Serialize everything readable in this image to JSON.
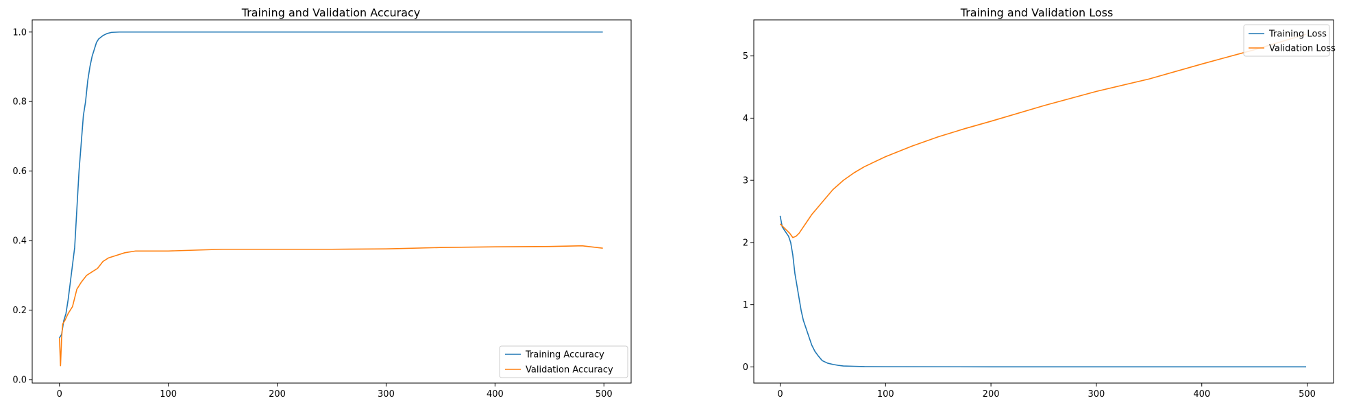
{
  "chart_data": [
    {
      "type": "line",
      "title": "Training and Validation Accuracy",
      "xlabel": "",
      "ylabel": "",
      "xlim": [
        -25,
        525
      ],
      "ylim": [
        -0.01,
        1.035
      ],
      "xticks": [
        0,
        100,
        200,
        300,
        400,
        500
      ],
      "xtick_labels": [
        "0",
        "100",
        "200",
        "300",
        "400",
        "500"
      ],
      "yticks": [
        0.0,
        0.2,
        0.4,
        0.6,
        0.8,
        1.0
      ],
      "ytick_labels": [
        "0.0",
        "0.2",
        "0.4",
        "0.6",
        "0.8",
        "1.0"
      ],
      "grid": false,
      "legend_position": "lower-right",
      "series": [
        {
          "name": "Training Accuracy",
          "color": "#1f77b4",
          "x": [
            0,
            2,
            4,
            6,
            8,
            10,
            12,
            14,
            16,
            18,
            20,
            22,
            24,
            26,
            28,
            30,
            32,
            34,
            36,
            38,
            40,
            44,
            48,
            55,
            70,
            100,
            200,
            300,
            400,
            499
          ],
          "y": [
            0.12,
            0.13,
            0.17,
            0.19,
            0.23,
            0.28,
            0.33,
            0.38,
            0.49,
            0.6,
            0.68,
            0.76,
            0.8,
            0.86,
            0.9,
            0.93,
            0.95,
            0.97,
            0.98,
            0.985,
            0.99,
            0.996,
            0.999,
            1.0,
            1.0,
            1.0,
            1.0,
            1.0,
            1.0,
            1.0
          ]
        },
        {
          "name": "Validation Accuracy",
          "color": "#ff7f0e",
          "x": [
            0,
            1,
            2,
            3,
            5,
            8,
            12,
            16,
            20,
            25,
            30,
            35,
            40,
            45,
            50,
            60,
            70,
            80,
            100,
            150,
            200,
            250,
            300,
            350,
            400,
            450,
            480,
            499
          ],
          "y": [
            0.12,
            0.04,
            0.12,
            0.16,
            0.17,
            0.19,
            0.21,
            0.26,
            0.28,
            0.3,
            0.31,
            0.32,
            0.34,
            0.35,
            0.355,
            0.365,
            0.37,
            0.37,
            0.37,
            0.375,
            0.375,
            0.375,
            0.376,
            0.38,
            0.382,
            0.383,
            0.385,
            0.378
          ]
        }
      ]
    },
    {
      "type": "line",
      "title": "Training and Validation Loss",
      "xlabel": "",
      "ylabel": "",
      "xlim": [
        -25,
        525
      ],
      "ylim": [
        -0.26,
        5.58
      ],
      "xticks": [
        0,
        100,
        200,
        300,
        400,
        500
      ],
      "xtick_labels": [
        "0",
        "100",
        "200",
        "300",
        "400",
        "500"
      ],
      "yticks": [
        0,
        1,
        2,
        3,
        4,
        5
      ],
      "ytick_labels": [
        "0",
        "1",
        "2",
        "3",
        "4",
        "5"
      ],
      "grid": false,
      "legend_position": "upper-right",
      "series": [
        {
          "name": "Training Loss",
          "color": "#1f77b4",
          "x": [
            0,
            2,
            4,
            6,
            8,
            10,
            12,
            14,
            16,
            18,
            20,
            22,
            25,
            28,
            30,
            33,
            36,
            40,
            45,
            50,
            55,
            60,
            70,
            80,
            100,
            200,
            300,
            400,
            499
          ],
          "y": [
            2.43,
            2.25,
            2.2,
            2.15,
            2.1,
            2.0,
            1.8,
            1.5,
            1.3,
            1.1,
            0.9,
            0.75,
            0.6,
            0.45,
            0.35,
            0.25,
            0.18,
            0.1,
            0.06,
            0.04,
            0.025,
            0.015,
            0.01,
            0.005,
            0.003,
            0.001,
            0.001,
            0.0005,
            0.0005
          ],
          "pick": 0
        },
        {
          "name": "Validation Loss",
          "color": "#ff7f0e",
          "x": [
            0,
            3,
            6,
            9,
            12,
            15,
            18,
            22,
            26,
            30,
            35,
            40,
            50,
            60,
            70,
            80,
            100,
            125,
            150,
            175,
            200,
            250,
            300,
            350,
            400,
            450,
            499
          ],
          "y": [
            2.3,
            2.25,
            2.2,
            2.15,
            2.08,
            2.1,
            2.15,
            2.25,
            2.35,
            2.45,
            2.55,
            2.65,
            2.85,
            3.0,
            3.12,
            3.22,
            3.38,
            3.55,
            3.7,
            3.83,
            3.95,
            4.2,
            4.43,
            4.63,
            4.87,
            5.1,
            5.35
          ]
        }
      ]
    }
  ]
}
